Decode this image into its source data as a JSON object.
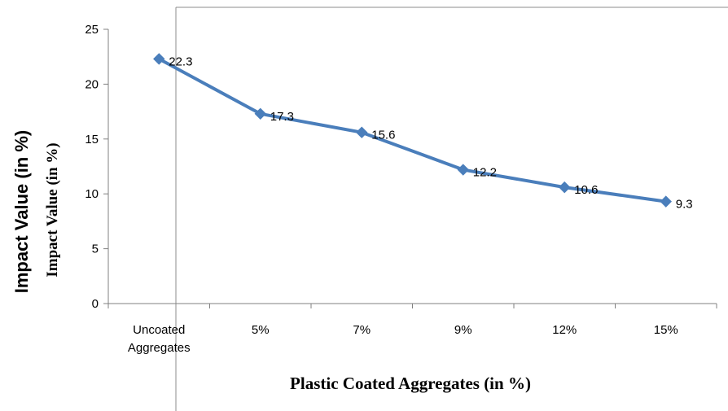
{
  "chart_data": {
    "type": "line",
    "categories": [
      [
        "Uncoated",
        "Aggregates"
      ],
      [
        "5%"
      ],
      [
        "7%"
      ],
      [
        "9%"
      ],
      [
        "12%"
      ],
      [
        "15%"
      ]
    ],
    "series": [
      {
        "values": [
          22.3,
          17.3,
          15.6,
          12.2,
          10.6,
          9.3
        ],
        "color": "#4a7ebb",
        "marker": "diamond"
      }
    ],
    "data_labels": [
      "22.3",
      "17.3",
      "15.6",
      "12.2",
      "10.6",
      "9.3"
    ],
    "y_ticks": [
      "0",
      "5",
      "10",
      "15",
      "20",
      "25"
    ],
    "ylim": [
      0,
      25
    ],
    "xlabel": "Plastic Coated Aggregates (in %)",
    "ylabel": "Impact Value (in %)",
    "ylabel_overlay": "Impact  Value (in %)",
    "grid": false,
    "legend": "none"
  }
}
